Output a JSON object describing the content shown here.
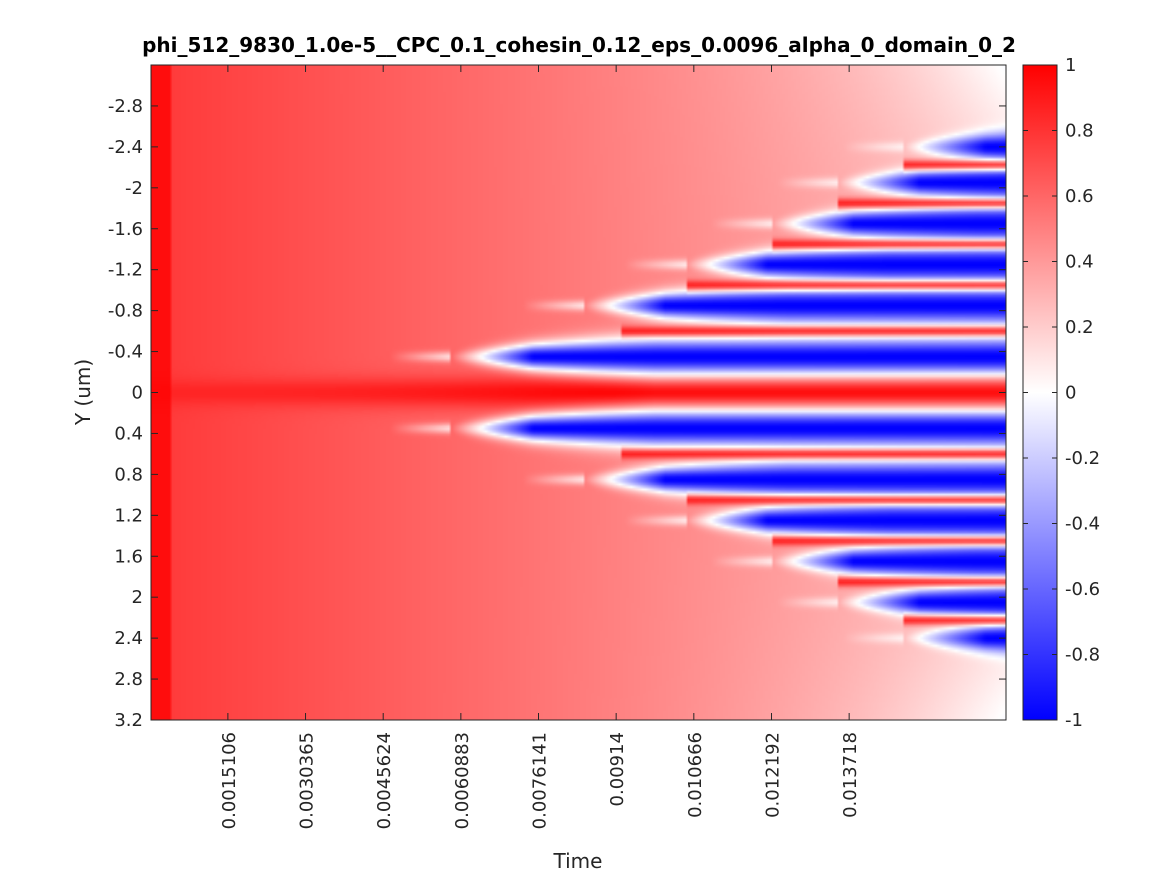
{
  "chart_data": {
    "type": "heatmap",
    "title": "phi_512_9830_1.0e-5__CPC_0.1_cohesin_0.12_eps_0.0096_alpha_0_domain_0_2",
    "xlabel": "Time",
    "ylabel": "Y (um)",
    "xlim": [
      0,
      0.0168
    ],
    "ylim": [
      -3.2,
      3.2
    ],
    "y_reversed": true,
    "x_ticks": [
      "0.0015106",
      "0.0030365",
      "0.0045624",
      "0.0060883",
      "0.0076141",
      "0.00914",
      "0.010666",
      "0.012192",
      "0.013718"
    ],
    "x_tick_values": [
      0.0015106,
      0.0030365,
      0.0045624,
      0.0060883,
      0.0076141,
      0.00914,
      0.010666,
      0.012192,
      0.013718
    ],
    "y_ticks": [
      "-2.8",
      "-2.4",
      "-2",
      "-1.6",
      "-1.2",
      "-0.8",
      "-0.4",
      "0",
      "0.4",
      "0.8",
      "1.2",
      "1.6",
      "2",
      "2.4",
      "2.8",
      "3.2"
    ],
    "y_tick_values": [
      -2.8,
      -2.4,
      -2.0,
      -1.6,
      -1.2,
      -0.8,
      -0.4,
      0,
      0.4,
      0.8,
      1.2,
      1.6,
      2.0,
      2.4,
      2.8,
      3.2
    ],
    "colorbar": {
      "ticks": [
        "1",
        "0.8",
        "0.6",
        "0.4",
        "0.2",
        "0",
        "-0.2",
        "-0.4",
        "-0.6",
        "-0.8",
        "-1"
      ],
      "tick_values": [
        1,
        0.8,
        0.6,
        0.4,
        0.2,
        0,
        -0.2,
        -0.4,
        -0.6,
        -0.8,
        -1
      ],
      "range": [
        -1,
        1
      ],
      "colors": {
        "min": "#0000ff",
        "mid": "#ffffff",
        "max": "#ff0000"
      }
    },
    "stripe_onset_times": [
      {
        "y": 0.35,
        "t": 0.0059
      },
      {
        "y": 0.85,
        "t": 0.0085
      },
      {
        "y": 1.25,
        "t": 0.0105
      },
      {
        "y": 1.65,
        "t": 0.0122
      },
      {
        "y": 2.05,
        "t": 0.0135
      },
      {
        "y": 2.4,
        "t": 0.0148
      }
    ],
    "grid": false
  }
}
